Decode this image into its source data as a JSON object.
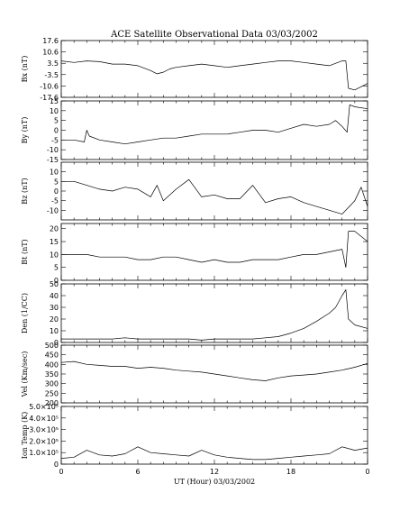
{
  "chart_data": {
    "type": "line",
    "title": "ACE Satellite Observational Data   03/03/2002",
    "xlabel": "UT (Hour)  03/03/2002",
    "x_tick_labels": [
      "0",
      "6",
      "12",
      "18",
      "0"
    ],
    "xlim_hours": [
      0,
      24
    ],
    "grid": false,
    "panels": [
      {
        "name": "bx",
        "ylabel": "Bx (nT)",
        "ylim": [
          -17.6,
          17.6
        ],
        "tick_labels": [
          "17.6",
          "10.6",
          "3.5",
          "-3.5",
          "-10.6",
          "-17.6"
        ],
        "tick_values": [
          17.6,
          10.6,
          3.5,
          -3.5,
          -10.6,
          -17.6
        ],
        "x": [
          0,
          1,
          2,
          3,
          4,
          5,
          6,
          7,
          7.5,
          8,
          8.5,
          9,
          10,
          11,
          12,
          13,
          14,
          15,
          16,
          17,
          18,
          19,
          20,
          21,
          22,
          22.3,
          22.5,
          23,
          23.5,
          24
        ],
        "y": [
          5,
          4,
          5,
          4.5,
          3,
          3,
          2,
          -1,
          -3,
          -2,
          0,
          1,
          2,
          3,
          2,
          1,
          2,
          3,
          4,
          5,
          5,
          4,
          3,
          2,
          5,
          5,
          -12,
          -13,
          -11,
          -9
        ]
      },
      {
        "name": "by",
        "ylabel": "By (nT)",
        "ylim": [
          -15,
          15
        ],
        "tick_labels": [
          "15",
          "10",
          "5",
          "0",
          "-5",
          "-10",
          "-15"
        ],
        "tick_values": [
          15,
          10,
          5,
          0,
          -5,
          -10,
          -15
        ],
        "x": [
          0,
          1,
          1.8,
          2,
          2.2,
          3,
          4,
          5,
          6,
          7,
          8,
          9,
          10,
          11,
          12,
          13,
          14,
          15,
          16,
          17,
          18,
          19,
          20,
          21,
          21.5,
          22,
          22.4,
          22.6,
          23,
          24
        ],
        "y": [
          -5,
          -5,
          -6,
          0,
          -3,
          -5,
          -6,
          -7,
          -6,
          -5,
          -4,
          -4,
          -3,
          -2,
          -2,
          -2,
          -1,
          0,
          0,
          -1,
          1,
          3,
          2,
          3,
          5,
          2,
          -1,
          13,
          12,
          11
        ]
      },
      {
        "name": "bz",
        "ylabel": "Bz (nT)",
        "ylim": [
          -15,
          15
        ],
        "tick_labels": [
          "10",
          "5",
          "0",
          "-5",
          "-10"
        ],
        "tick_values": [
          10,
          5,
          0,
          -5,
          -10
        ],
        "x": [
          0,
          1,
          2,
          3,
          4,
          5,
          6,
          7,
          7.5,
          8,
          9,
          10,
          11,
          12,
          13,
          14,
          15,
          16,
          17,
          18,
          19,
          20,
          21,
          22,
          23,
          23.5,
          24
        ],
        "y": [
          5,
          5,
          3,
          1,
          0,
          2,
          1,
          -3,
          3,
          -5,
          1,
          6,
          -3,
          -2,
          -4,
          -4,
          3,
          -6,
          -4,
          -3,
          -6,
          -8,
          -10,
          -12,
          -5,
          2,
          -8
        ]
      },
      {
        "name": "bt",
        "ylabel": "Bt (nT)",
        "ylim": [
          0,
          22
        ],
        "tick_labels": [
          "20",
          "15",
          "10",
          "5",
          "0"
        ],
        "tick_values": [
          20,
          15,
          10,
          5,
          0
        ],
        "x": [
          0,
          1,
          2,
          3,
          4,
          5,
          6,
          7,
          8,
          9,
          10,
          11,
          12,
          13,
          14,
          15,
          16,
          17,
          18,
          19,
          20,
          21,
          22,
          22.3,
          22.5,
          23,
          24
        ],
        "y": [
          10,
          10,
          10,
          9,
          9,
          9,
          8,
          8,
          9,
          9,
          8,
          7,
          8,
          7,
          7,
          8,
          8,
          8,
          9,
          10,
          10,
          11,
          12,
          5,
          19,
          19,
          15
        ]
      },
      {
        "name": "density",
        "ylabel": "Den (1/CC)",
        "ylim": [
          0,
          50
        ],
        "tick_labels": [
          "50",
          "40",
          "30",
          "20",
          "10",
          "0"
        ],
        "tick_values": [
          50,
          40,
          30,
          20,
          10,
          0
        ],
        "x": [
          0,
          1,
          2,
          3,
          4,
          5,
          6,
          7,
          8,
          9,
          10,
          11,
          12,
          13,
          14,
          15,
          16,
          17,
          18,
          19,
          20,
          21,
          21.5,
          22,
          22.3,
          22.5,
          23,
          24
        ],
        "y": [
          3,
          3,
          3,
          3,
          3,
          4,
          3,
          3,
          3,
          3,
          3,
          2,
          3,
          3,
          3,
          3,
          4,
          5,
          8,
          12,
          18,
          25,
          30,
          40,
          45,
          20,
          15,
          12
        ]
      },
      {
        "name": "velocity",
        "ylabel": "Vel (Km/sec)",
        "ylim": [
          200,
          500
        ],
        "tick_labels": [
          "500",
          "450",
          "400",
          "350",
          "300",
          "250",
          "200"
        ],
        "tick_values": [
          500,
          450,
          400,
          350,
          300,
          250,
          200
        ],
        "x": [
          0,
          1,
          2,
          3,
          4,
          5,
          6,
          7,
          8,
          9,
          10,
          11,
          12,
          13,
          14,
          15,
          16,
          17,
          18,
          19,
          20,
          21,
          22,
          23,
          24
        ],
        "y": [
          410,
          415,
          400,
          395,
          390,
          390,
          380,
          385,
          380,
          370,
          365,
          360,
          350,
          340,
          330,
          320,
          315,
          330,
          340,
          345,
          350,
          360,
          370,
          385,
          405
        ]
      },
      {
        "name": "ion_temp",
        "ylabel": "Ion Temp (K)",
        "ylim": [
          0,
          500000
        ],
        "tick_labels": [
          "5.0×10⁵",
          "4.0×10⁵",
          "3.0×10⁵",
          "2.0×10⁵",
          "1.0×10⁵",
          "0"
        ],
        "tick_values": [
          500000,
          400000,
          300000,
          200000,
          100000,
          0
        ],
        "x": [
          0,
          1,
          2,
          3,
          4,
          5,
          6,
          7,
          8,
          9,
          10,
          11,
          12,
          13,
          14,
          15,
          16,
          17,
          18,
          19,
          20,
          21,
          22,
          23,
          24
        ],
        "y": [
          50000,
          60000,
          120000,
          80000,
          70000,
          90000,
          150000,
          100000,
          90000,
          80000,
          70000,
          120000,
          80000,
          60000,
          50000,
          40000,
          40000,
          50000,
          60000,
          70000,
          80000,
          90000,
          150000,
          120000,
          140000
        ]
      }
    ]
  }
}
